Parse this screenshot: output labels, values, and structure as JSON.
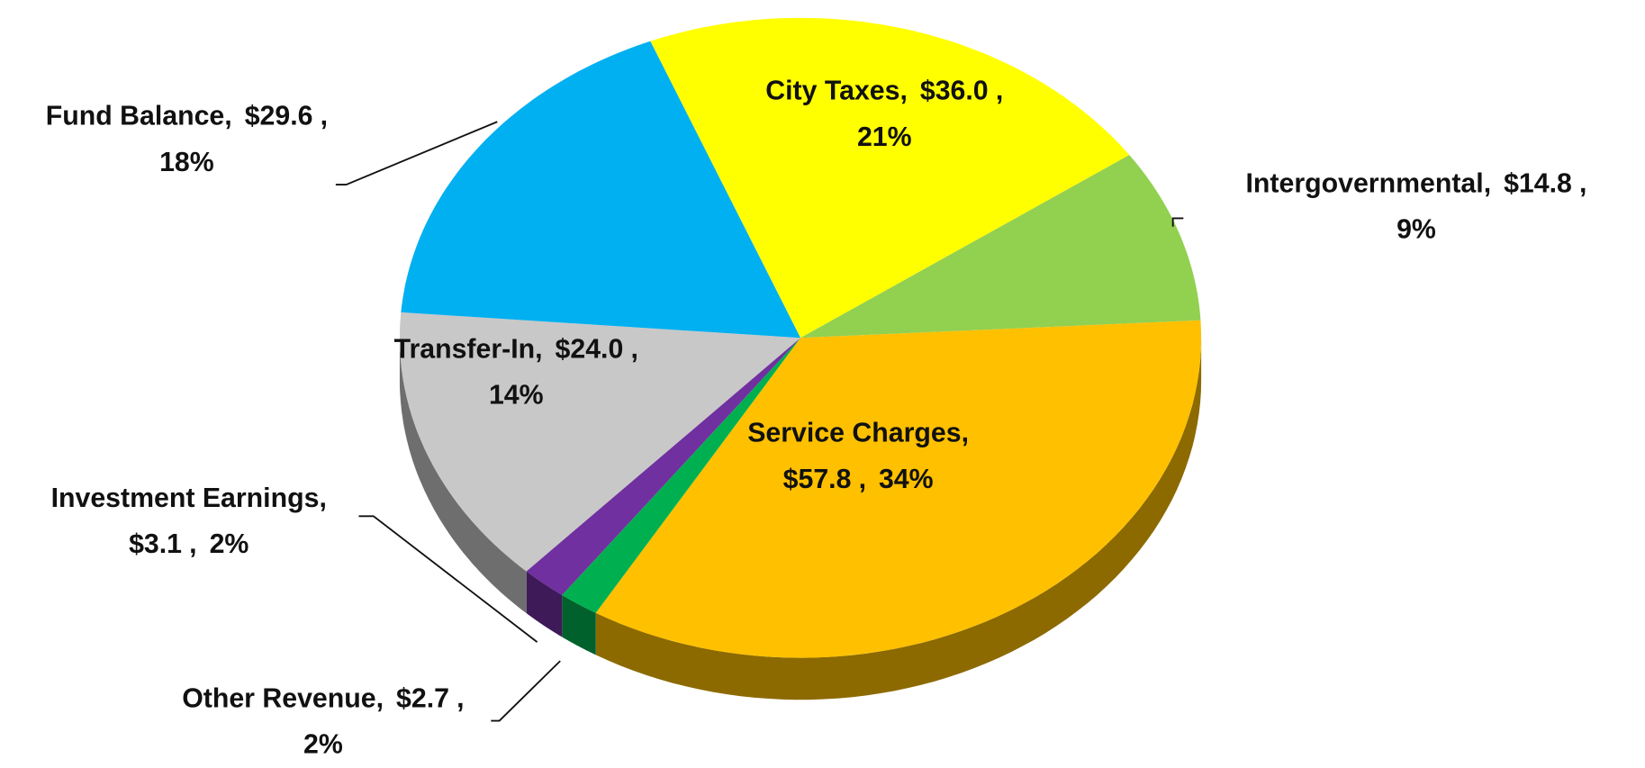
{
  "chart_data": {
    "type": "pie",
    "categories": [
      "City Taxes",
      "Intergovernmental",
      "Service Charges",
      "Other Revenue",
      "Investment Earnings",
      "Transfer-In",
      "Fund Balance"
    ],
    "values": [
      36.0,
      14.8,
      57.8,
      2.7,
      3.1,
      24.0,
      29.6
    ],
    "value_labels": [
      "$36.0",
      "$14.8",
      "$57.8",
      "$2.7",
      "$3.1",
      "$24.0",
      "$29.6"
    ],
    "percent_labels": [
      "21%",
      "9%",
      "34%",
      "2%",
      "2%",
      "14%",
      "18%"
    ],
    "label_separator": ",",
    "colors": [
      "#ffff00",
      "#92d050",
      "#ffc000",
      "#00b050",
      "#7030a0",
      "#c8c8c8",
      "#00b0f0"
    ],
    "three_d": true
  }
}
